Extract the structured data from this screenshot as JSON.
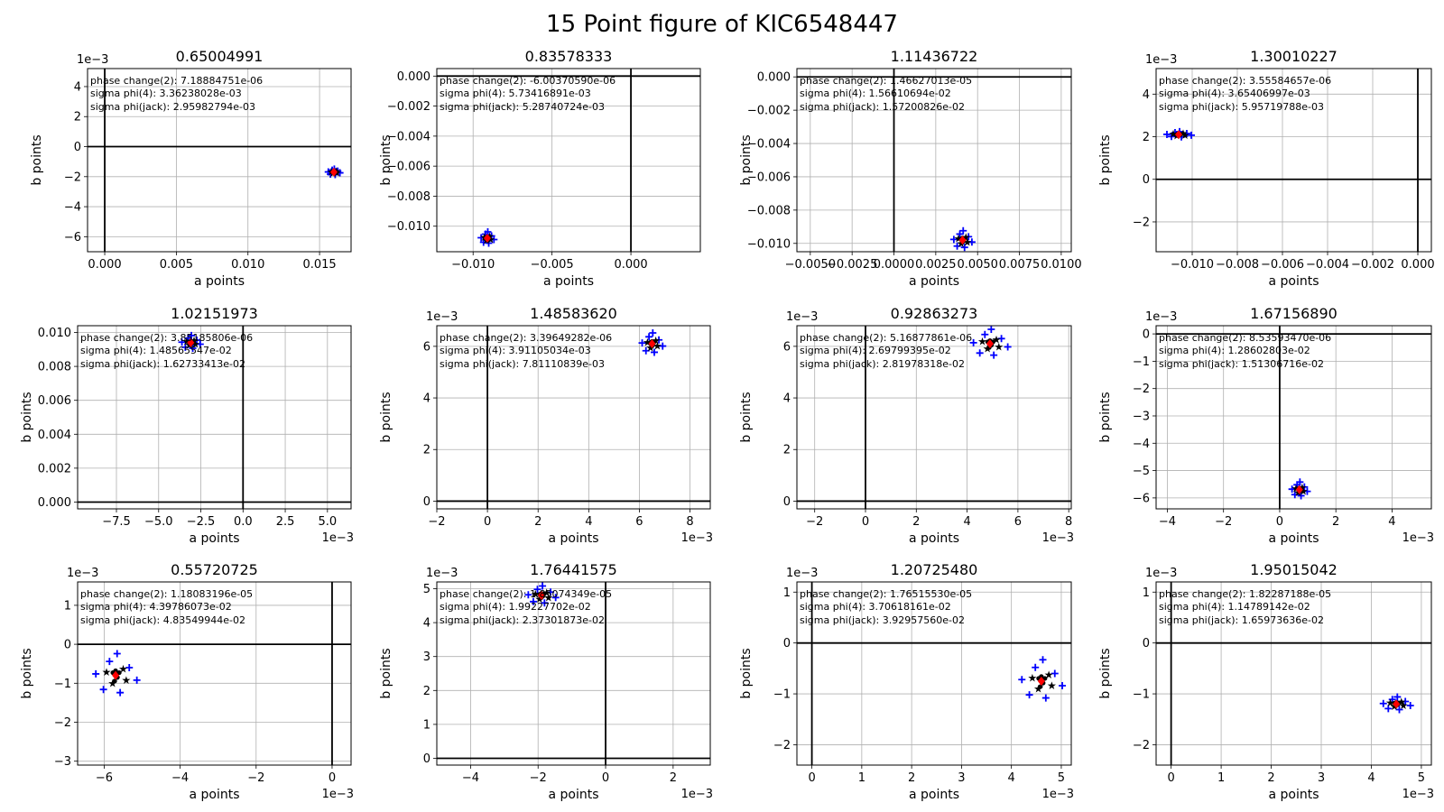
{
  "figure": {
    "title": "15 Point figure of KIC6548447"
  },
  "legend": {
    "phase_label": "phase change(2): ",
    "sigma4_label": "sigma phi(4): ",
    "sigmajack_label": "sigma phi(jack): "
  },
  "colors": {
    "plus": "#0000ff",
    "star": "#ffa500",
    "dot": "#000000",
    "diamond": "#ff0000",
    "annotation": "#008000",
    "grid": "#b0b0b0",
    "axis_line": "#000000"
  },
  "chart_data": [
    {
      "type": "scatter",
      "title": "0.65004991",
      "xlabel": "a points",
      "ylabel": "b points",
      "xlim": [
        -0.0012,
        0.0172
      ],
      "ylim": [
        -0.007,
        0.0052
      ],
      "xticks": [
        0.0,
        0.005,
        0.01,
        0.015
      ],
      "xticklabels": [
        "0.000",
        "0.005",
        "0.010",
        "0.015"
      ],
      "xoffset": "",
      "yticks": [
        -0.006,
        -0.004,
        -0.002,
        0,
        0.002,
        0.004
      ],
      "yticklabels": [
        "−6",
        "−4",
        "−2",
        "0",
        "2",
        "4"
      ],
      "yoffset": "1e−3",
      "center": [
        0.016,
        -0.0017
      ],
      "spread": [
        0.0003,
        0.00015
      ],
      "phase_change": "7.18884751e-06",
      "sigma4": "3.36238028e-03",
      "sigmajack": "2.95982794e-03"
    },
    {
      "type": "scatter",
      "title": "0.83578333",
      "xlabel": "a points",
      "ylabel": "b points",
      "xlim": [
        -0.0123,
        0.0044
      ],
      "ylim": [
        -0.0117,
        0.0005
      ],
      "xticks": [
        -0.01,
        -0.005,
        0.0
      ],
      "xticklabels": [
        "−0.010",
        "−0.005",
        "0.000"
      ],
      "xoffset": "",
      "yticks": [
        0.0,
        -0.002,
        -0.004,
        -0.006,
        -0.008,
        -0.01
      ],
      "yticklabels": [
        "0.000",
        "−0.002",
        "−0.004",
        "−0.006",
        "−0.008",
        "−0.010"
      ],
      "yoffset": "",
      "center": [
        -0.0091,
        -0.0108
      ],
      "spread": [
        0.0003,
        0.0003
      ],
      "phase_change": "-6.00370590e-06",
      "sigma4": "5.73416891e-03",
      "sigmajack": "5.28740724e-03"
    },
    {
      "type": "scatter",
      "title": "1.11436722",
      "xlabel": "a points",
      "ylabel": "b points",
      "xlim": [
        -0.0058,
        0.0106
      ],
      "ylim": [
        -0.0105,
        0.0005
      ],
      "xticks": [
        -0.005,
        -0.0025,
        0.0,
        0.0025,
        0.005,
        0.0075,
        0.01
      ],
      "xticklabels": [
        "−0.0050",
        "−0.0025",
        "0.0000",
        "0.0025",
        "0.0050",
        "0.0075",
        "0.0100"
      ],
      "xoffset": "",
      "yticks": [
        0.0,
        -0.002,
        -0.004,
        -0.006,
        -0.008,
        -0.01
      ],
      "yticklabels": [
        "0.000",
        "−0.002",
        "−0.004",
        "−0.006",
        "−0.008",
        "−0.010"
      ],
      "yoffset": "",
      "center": [
        0.0041,
        -0.0098
      ],
      "spread": [
        0.0004,
        0.0004
      ],
      "phase_change": "1.46627013e-05",
      "sigma4": "1.56610694e-02",
      "sigmajack": "1.57200826e-02"
    },
    {
      "type": "scatter",
      "title": "1.30010227",
      "xlabel": "a points",
      "ylabel": "b points",
      "xlim": [
        -0.0116,
        0.0006
      ],
      "ylim": [
        -0.0034,
        0.0052
      ],
      "xticks": [
        -0.01,
        -0.008,
        -0.006,
        -0.004,
        -0.002,
        0.0
      ],
      "xticklabels": [
        "−0.010",
        "−0.008",
        "−0.006",
        "−0.004",
        "−0.002",
        "0.000"
      ],
      "xoffset": "",
      "yticks": [
        -0.002,
        0,
        0.002,
        0.004
      ],
      "yticklabels": [
        "−2",
        "0",
        "2",
        "4"
      ],
      "yoffset": "1e−3",
      "center": [
        -0.0106,
        0.0021
      ],
      "spread": [
        0.0004,
        0.0001
      ],
      "phase_change": "3.55584657e-06",
      "sigma4": "3.65406997e-03",
      "sigmajack": "5.95719788e-03"
    },
    {
      "type": "scatter",
      "title": "1.02151973",
      "xlabel": "a points",
      "ylabel": "b points",
      "xlim": [
        -0.0098,
        0.0064
      ],
      "ylim": [
        -0.0004,
        0.0104
      ],
      "xticks": [
        -0.0075,
        -0.005,
        -0.0025,
        0.0,
        0.0025,
        0.005
      ],
      "xticklabels": [
        "−7.5",
        "−5.0",
        "−2.5",
        "0.0",
        "2.5",
        "5.0"
      ],
      "xoffset": "1e−3",
      "yticks": [
        0.0,
        0.002,
        0.004,
        0.006,
        0.008,
        0.01
      ],
      "yticklabels": [
        "0.000",
        "0.002",
        "0.004",
        "0.006",
        "0.008",
        "0.010"
      ],
      "yoffset": "",
      "center": [
        -0.0031,
        0.0094
      ],
      "spread": [
        0.0004,
        0.0003
      ],
      "phase_change": "3.85185806e-06",
      "sigma4": "1.48565547e-02",
      "sigmajack": "1.62733413e-02"
    },
    {
      "type": "scatter",
      "title": "1.48583620",
      "xlabel": "a points",
      "ylabel": "b points",
      "xlim": [
        -0.002,
        0.0088
      ],
      "ylim": [
        -0.0003,
        0.0068
      ],
      "xticks": [
        -0.002,
        0.0,
        0.002,
        0.004,
        0.006,
        0.008
      ],
      "xticklabels": [
        "−2",
        "0",
        "2",
        "4",
        "6",
        "8"
      ],
      "xoffset": "1e−3",
      "yticks": [
        0,
        0.002,
        0.004,
        0.006
      ],
      "yticklabels": [
        "0",
        "2",
        "4",
        "6"
      ],
      "yoffset": "1e−3",
      "center": [
        0.0065,
        0.0061
      ],
      "spread": [
        0.0003,
        0.0003
      ],
      "phase_change": "3.39649282e-06",
      "sigma4": "3.91105034e-03",
      "sigmajack": "7.81110839e-03"
    },
    {
      "type": "scatter",
      "title": "0.92863273",
      "xlabel": "a points",
      "ylabel": "b points",
      "xlim": [
        -0.0027,
        0.0081
      ],
      "ylim": [
        -0.0003,
        0.0068
      ],
      "xticks": [
        -0.002,
        0.0,
        0.002,
        0.004,
        0.006,
        0.008
      ],
      "xticklabels": [
        "−2",
        "0",
        "2",
        "4",
        "6",
        "8"
      ],
      "xoffset": "1e−3",
      "yticks": [
        0,
        0.002,
        0.004,
        0.006
      ],
      "yticklabels": [
        "0",
        "2",
        "4",
        "6"
      ],
      "yoffset": "1e−3",
      "center": [
        0.0049,
        0.0061
      ],
      "spread": [
        0.0005,
        0.0004
      ],
      "phase_change": "5.16877861e-06",
      "sigma4": "2.69799395e-02",
      "sigmajack": "2.81978318e-02"
    },
    {
      "type": "scatter",
      "title": "1.67156890",
      "xlabel": "a points",
      "ylabel": "b points",
      "xlim": [
        -0.0044,
        0.0054
      ],
      "ylim": [
        -0.0064,
        0.0003
      ],
      "xticks": [
        -0.004,
        -0.002,
        0.0,
        0.002,
        0.004
      ],
      "xticklabels": [
        "−4",
        "−2",
        "0",
        "2",
        "4"
      ],
      "xoffset": "1e−3",
      "yticks": [
        0,
        -0.001,
        -0.002,
        -0.003,
        -0.004,
        -0.005,
        -0.006
      ],
      "yticklabels": [
        "0",
        "−1",
        "−2",
        "−3",
        "−4",
        "−5",
        "−6"
      ],
      "yoffset": "1e−3",
      "center": [
        0.0007,
        -0.0057
      ],
      "spread": [
        0.0002,
        0.0002
      ],
      "phase_change": "8.53593470e-06",
      "sigma4": "1.28602803e-02",
      "sigmajack": "1.51306716e-02"
    },
    {
      "type": "scatter",
      "title": "0.55720725",
      "xlabel": "a points",
      "ylabel": "b points",
      "xlim": [
        -0.0067,
        0.0005
      ],
      "ylim": [
        -0.0031,
        0.0016
      ],
      "xticks": [
        -0.006,
        -0.004,
        -0.002,
        0.0
      ],
      "xticklabels": [
        "−6",
        "−4",
        "−2",
        "0"
      ],
      "xoffset": "1e−3",
      "yticks": [
        -0.003,
        -0.002,
        -0.001,
        0,
        0.001
      ],
      "yticklabels": [
        "−3",
        "−2",
        "−1",
        "0",
        "1"
      ],
      "yoffset": "1e−3",
      "center": [
        -0.0057,
        -0.0008
      ],
      "spread": [
        0.0004,
        0.0004
      ],
      "phase_change": "1.18083196e-05",
      "sigma4": "4.39786073e-02",
      "sigmajack": "4.83549944e-02"
    },
    {
      "type": "scatter",
      "title": "1.76441575",
      "xlabel": "a points",
      "ylabel": "b points",
      "xlim": [
        -0.005,
        0.0031
      ],
      "ylim": [
        -0.0002,
        0.0052
      ],
      "xticks": [
        -0.004,
        -0.002,
        0.0,
        0.002
      ],
      "xticklabels": [
        "−4",
        "−2",
        "0",
        "2"
      ],
      "xoffset": "1e−3",
      "yticks": [
        0,
        0.001,
        0.002,
        0.003,
        0.004,
        0.005
      ],
      "yticklabels": [
        "0",
        "1",
        "2",
        "3",
        "4",
        "5"
      ],
      "yoffset": "1e−3",
      "center": [
        -0.0019,
        0.0048
      ],
      "spread": [
        0.0003,
        0.0002
      ],
      "phase_change": "1.85074349e-05",
      "sigma4": "1.99227702e-02",
      "sigmajack": "2.37301873e-02"
    },
    {
      "type": "scatter",
      "title": "1.20725480",
      "xlabel": "a points",
      "ylabel": "b points",
      "xlim": [
        -0.0003,
        0.0052
      ],
      "ylim": [
        -0.0024,
        0.0012
      ],
      "xticks": [
        0,
        0.001,
        0.002,
        0.003,
        0.004,
        0.005
      ],
      "xticklabels": [
        "0",
        "1",
        "2",
        "3",
        "4",
        "5"
      ],
      "xoffset": "1e−3",
      "yticks": [
        -0.002,
        -0.001,
        0,
        0.001
      ],
      "yticklabels": [
        "−2",
        "−1",
        "0",
        "1"
      ],
      "yoffset": "1e−3",
      "center": [
        0.0046,
        -0.00075
      ],
      "spread": [
        0.0003,
        0.0003
      ],
      "phase_change": "1.76515530e-05",
      "sigma4": "3.70618161e-02",
      "sigmajack": "3.92957560e-02"
    },
    {
      "type": "scatter",
      "title": "1.95015042",
      "xlabel": "a points",
      "ylabel": "b points",
      "xlim": [
        -0.0003,
        0.0052
      ],
      "ylim": [
        -0.0024,
        0.0012
      ],
      "xticks": [
        0,
        0.001,
        0.002,
        0.003,
        0.004,
        0.005
      ],
      "xticklabels": [
        "0",
        "1",
        "2",
        "3",
        "4",
        "5"
      ],
      "xoffset": "1e−3",
      "yticks": [
        -0.002,
        -0.001,
        0,
        0.001
      ],
      "yticklabels": [
        "−2",
        "−1",
        "0",
        "1"
      ],
      "yoffset": "1e−3",
      "center": [
        0.0045,
        -0.0012
      ],
      "spread": [
        0.0002,
        0.0001
      ],
      "phase_change": "1.82287188e-05",
      "sigma4": "1.14789142e-02",
      "sigmajack": "1.65973636e-02"
    }
  ]
}
